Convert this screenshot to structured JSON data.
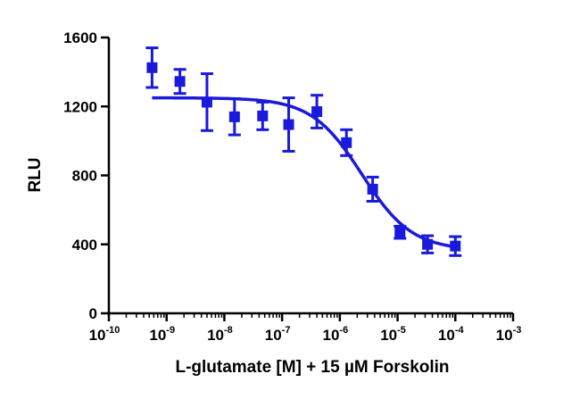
{
  "chart_data": {
    "type": "scatter",
    "xlabel": "L-glutamate [M] + 15  µM Forskolin",
    "ylabel": "RLU",
    "x_scale": "log",
    "xlim": [
      1e-10,
      0.001
    ],
    "ylim": [
      0,
      1600
    ],
    "x_ticks": [
      {
        "value": 1e-10,
        "base": "10",
        "exp": "-10"
      },
      {
        "value": 1e-09,
        "base": "10",
        "exp": "-9"
      },
      {
        "value": 1e-08,
        "base": "10",
        "exp": "-8"
      },
      {
        "value": 1e-07,
        "base": "10",
        "exp": "-7"
      },
      {
        "value": 1e-06,
        "base": "10",
        "exp": "-6"
      },
      {
        "value": 1e-05,
        "base": "10",
        "exp": "-5"
      },
      {
        "value": 0.0001,
        "base": "10",
        "exp": "-4"
      },
      {
        "value": 0.001,
        "base": "10",
        "exp": "-3"
      }
    ],
    "y_ticks": [
      {
        "value": 0,
        "label": "0"
      },
      {
        "value": 400,
        "label": "400"
      },
      {
        "value": 800,
        "label": "800"
      },
      {
        "value": 1200,
        "label": "1200"
      },
      {
        "value": 1600,
        "label": "1600"
      }
    ],
    "grid": false,
    "color": "#1a1adc",
    "points": [
      {
        "x": 5.6e-10,
        "y": 1425,
        "err": 115
      },
      {
        "x": 1.7e-09,
        "y": 1345,
        "err": 70
      },
      {
        "x": 5e-09,
        "y": 1225,
        "err": 165
      },
      {
        "x": 1.5e-08,
        "y": 1140,
        "err": 105
      },
      {
        "x": 4.6e-08,
        "y": 1145,
        "err": 80
      },
      {
        "x": 1.3e-07,
        "y": 1095,
        "err": 155
      },
      {
        "x": 4e-07,
        "y": 1170,
        "err": 95
      },
      {
        "x": 1.3e-06,
        "y": 990,
        "err": 75
      },
      {
        "x": 3.7e-06,
        "y": 720,
        "err": 70
      },
      {
        "x": 1.1e-05,
        "y": 470,
        "err": 35
      },
      {
        "x": 3.3e-05,
        "y": 400,
        "err": 50
      },
      {
        "x": 0.0001,
        "y": 390,
        "err": 55
      }
    ],
    "fit": {
      "top": 1250,
      "bottom": 365,
      "log_ec50": -5.62,
      "hill": 1.0
    }
  }
}
